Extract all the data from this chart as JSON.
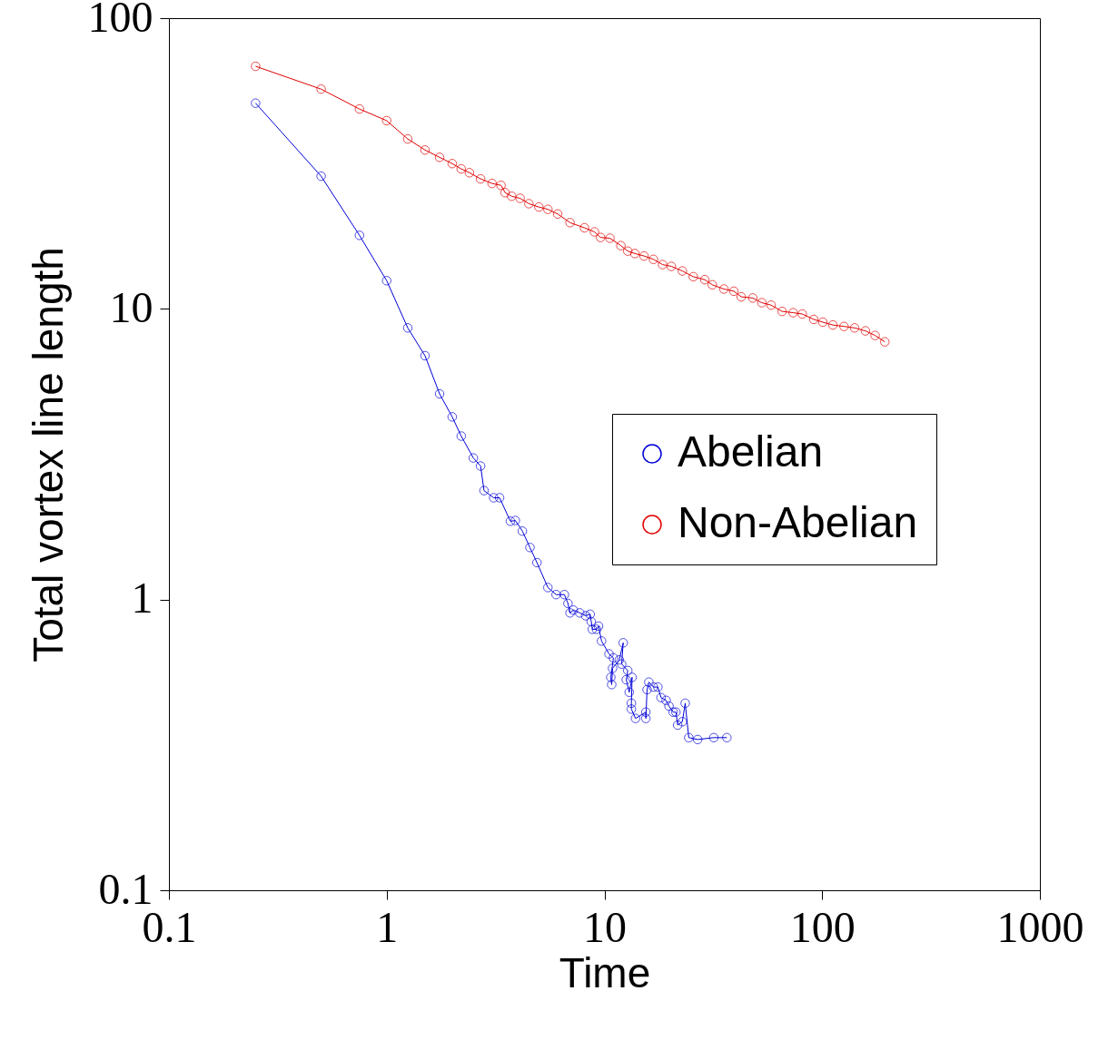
{
  "chart_data": {
    "type": "line",
    "xlabel": "Time",
    "ylabel": "Total vortex line length",
    "log": "xy",
    "xlim": [
      0.1,
      1000
    ],
    "ylim": [
      0.1,
      100
    ],
    "xticks": [
      0.1,
      1,
      10,
      100,
      1000
    ],
    "yticks": [
      0.1,
      1,
      10,
      100
    ],
    "grid": false,
    "legend": "right",
    "marker": "circle",
    "line_style": "solid",
    "series": [
      {
        "name": "Abelian",
        "color": "#0000d8",
        "x": [
          0.25,
          0.5,
          0.75,
          1,
          1.25,
          1.5,
          1.75,
          2,
          2.2,
          2.5,
          2.7,
          2.8,
          3.1,
          3.3,
          3.7,
          3.9,
          4.2,
          4.55,
          4.9,
          5.5,
          6.0,
          6.55,
          6.8,
          6.95,
          7.2,
          7.7,
          8.2,
          8.6,
          8.7,
          8.8,
          9.2,
          9.4,
          9.7,
          10.5,
          11.0,
          10.7,
          10.8,
          10.9,
          11.7,
          12.2,
          12.0,
          12.8,
          12.6,
          13.0,
          13.4,
          13.3,
          13.3,
          13.9,
          15.5,
          15.5,
          15.7,
          16.0,
          16.8,
          17.6,
          18.2,
          19.2,
          19.8,
          20.7,
          21.3,
          21.7,
          22.8,
          23.5,
          24.4,
          26.8,
          31.8,
          36.5
        ],
        "values": [
          51,
          28.6,
          17.9,
          12.5,
          8.6,
          6.9,
          5.1,
          4.25,
          3.65,
          3.07,
          2.88,
          2.37,
          2.24,
          2.24,
          1.86,
          1.87,
          1.72,
          1.51,
          1.34,
          1.1,
          1.04,
          1.04,
          0.97,
          0.9,
          0.92,
          0.9,
          0.88,
          0.89,
          0.84,
          0.79,
          0.79,
          0.81,
          0.72,
          0.65,
          0.63,
          0.54,
          0.51,
          0.58,
          0.62,
          0.71,
          0.6,
          0.57,
          0.53,
          0.48,
          0.54,
          0.44,
          0.42,
          0.39,
          0.41,
          0.39,
          0.49,
          0.52,
          0.5,
          0.5,
          0.46,
          0.45,
          0.43,
          0.41,
          0.41,
          0.37,
          0.38,
          0.44,
          0.335,
          0.33,
          0.335,
          0.335
        ]
      },
      {
        "name": "Non-Abelian",
        "color": "#e00000",
        "x": [
          0.25,
          0.5,
          0.75,
          1,
          1.25,
          1.5,
          1.75,
          2,
          2.2,
          2.4,
          2.7,
          3.05,
          3.35,
          3.5,
          3.75,
          4.1,
          4.5,
          5.0,
          5.5,
          6.1,
          6.95,
          8.1,
          9.0,
          9.6,
          10.6,
          11.9,
          12.8,
          13.8,
          15.2,
          16.8,
          18.5,
          20.3,
          22.8,
          25.6,
          28.9,
          31.3,
          35.4,
          39.3,
          42.5,
          48,
          52.8,
          58.3,
          65.5,
          73.6,
          81,
          91.5,
          100.7,
          112,
          126,
          141,
          158,
          175,
          194
        ],
        "values": [
          68.3,
          57,
          48.7,
          44.4,
          38.4,
          35.2,
          33.2,
          31.6,
          30.3,
          29.4,
          28,
          27,
          26.6,
          25.1,
          24.4,
          24,
          23,
          22.4,
          22,
          21.2,
          19.8,
          19,
          18.4,
          17.6,
          17.5,
          16.5,
          15.8,
          15.5,
          15.2,
          14.8,
          14.2,
          14,
          13.5,
          12.9,
          12.6,
          12.1,
          11.7,
          11.5,
          11,
          10.9,
          10.5,
          10.3,
          9.8,
          9.7,
          9.6,
          9.2,
          9.0,
          8.8,
          8.7,
          8.6,
          8.4,
          8.1,
          7.7
        ]
      }
    ]
  }
}
